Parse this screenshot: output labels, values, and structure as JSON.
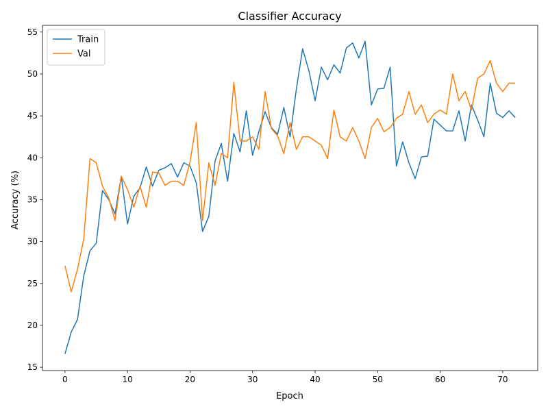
{
  "chart_data": {
    "type": "line",
    "title": "Classifier Accuracy",
    "xlabel": "Epoch",
    "ylabel": "Accuracy (%)",
    "xlim": [
      -3.6,
      75.6
    ],
    "ylim": [
      14.6,
      55.8
    ],
    "xticks": [
      0,
      10,
      20,
      30,
      40,
      50,
      60,
      70
    ],
    "yticks": [
      15,
      20,
      25,
      30,
      35,
      40,
      45,
      50,
      55
    ],
    "grid": false,
    "legend_position": "top-left",
    "series": [
      {
        "name": "Train",
        "color": "#1f77b4",
        "x": [
          0,
          1,
          2,
          3,
          4,
          5,
          6,
          7,
          8,
          9,
          10,
          11,
          12,
          13,
          14,
          15,
          16,
          17,
          18,
          19,
          20,
          21,
          22,
          23,
          24,
          25,
          26,
          27,
          28,
          29,
          30,
          31,
          32,
          33,
          34,
          35,
          36,
          37,
          38,
          39,
          40,
          41,
          42,
          43,
          44,
          45,
          46,
          47,
          48,
          49,
          50,
          51,
          52,
          53,
          54,
          55,
          56,
          57,
          58,
          59,
          60,
          61,
          62,
          63,
          64,
          65,
          66,
          67,
          68,
          69,
          70,
          71,
          72
        ],
        "values": [
          16.6,
          19.2,
          20.7,
          25.9,
          28.9,
          29.8,
          36.1,
          35.0,
          33.3,
          37.8,
          32.1,
          35.4,
          36.4,
          38.9,
          36.6,
          38.5,
          38.8,
          39.3,
          37.7,
          39.4,
          39.0,
          37.0,
          31.2,
          33.0,
          39.6,
          41.7,
          37.2,
          42.9,
          40.7,
          45.6,
          40.3,
          43.1,
          45.5,
          43.6,
          42.8,
          46.0,
          42.5,
          48.2,
          53.0,
          50.4,
          46.8,
          50.8,
          49.3,
          51.1,
          50.1,
          53.1,
          53.7,
          51.9,
          53.9,
          46.3,
          48.2,
          48.3,
          50.8,
          39.0,
          41.9,
          39.4,
          37.5,
          40.1,
          40.2,
          44.6,
          43.9,
          43.2,
          43.2,
          45.6,
          42.0,
          46.3,
          44.5,
          42.5,
          48.9,
          45.3,
          44.8,
          45.6,
          44.8
        ]
      },
      {
        "name": "Val",
        "color": "#ff7f0e",
        "x": [
          0,
          1,
          2,
          3,
          4,
          5,
          6,
          7,
          8,
          9,
          10,
          11,
          12,
          13,
          14,
          15,
          16,
          17,
          18,
          19,
          20,
          21,
          22,
          23,
          24,
          25,
          26,
          27,
          28,
          29,
          30,
          31,
          32,
          33,
          34,
          35,
          36,
          37,
          38,
          39,
          40,
          41,
          42,
          43,
          44,
          45,
          46,
          47,
          48,
          49,
          50,
          51,
          52,
          53,
          54,
          55,
          56,
          57,
          58,
          59,
          60,
          61,
          62,
          63,
          64,
          65,
          66,
          67,
          68,
          69,
          70,
          71,
          72
        ],
        "values": [
          27.1,
          24.0,
          26.7,
          30.3,
          39.9,
          39.4,
          36.6,
          35.2,
          32.5,
          37.8,
          36.2,
          34.1,
          36.6,
          34.1,
          38.3,
          38.2,
          36.7,
          37.2,
          37.2,
          36.7,
          39.5,
          44.2,
          32.5,
          39.4,
          36.7,
          40.5,
          40.0,
          49.0,
          42.0,
          42.0,
          42.5,
          41.0,
          47.9,
          43.5,
          42.6,
          40.5,
          44.2,
          41.0,
          42.5,
          42.5,
          42.0,
          41.5,
          39.9,
          45.7,
          42.5,
          42.0,
          43.6,
          42.0,
          39.9,
          43.6,
          44.7,
          43.1,
          43.6,
          44.7,
          45.2,
          47.9,
          45.2,
          46.3,
          44.2,
          45.2,
          45.7,
          45.2,
          50.0,
          46.8,
          47.9,
          45.7,
          49.5,
          50.0,
          51.6,
          48.9,
          47.9,
          48.9,
          48.9
        ]
      }
    ]
  }
}
